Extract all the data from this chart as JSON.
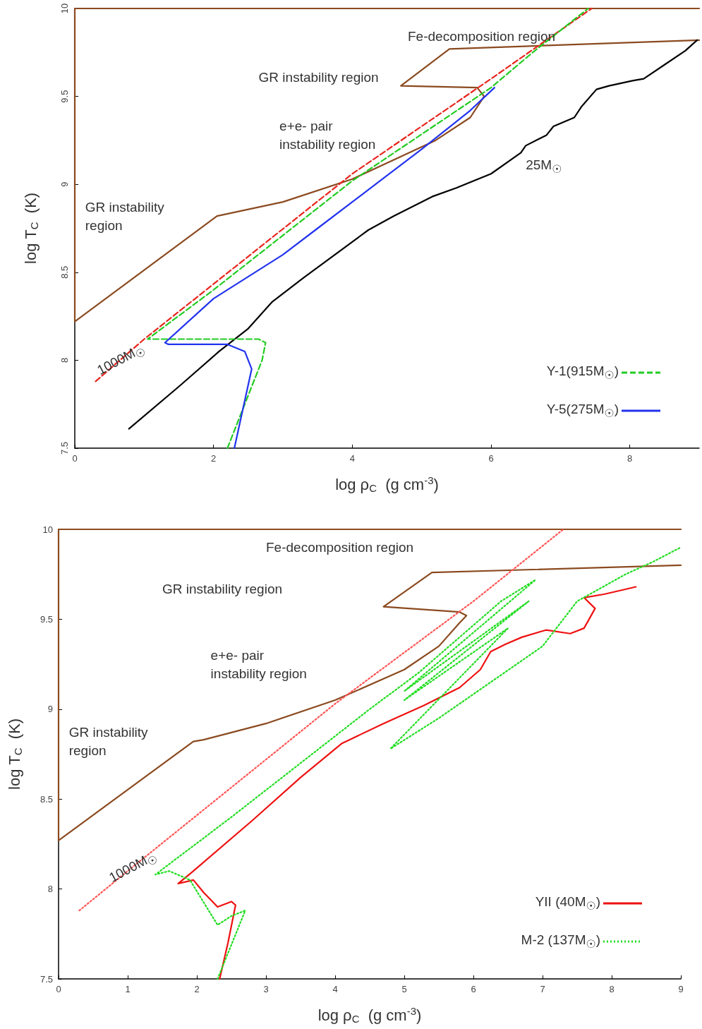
{
  "chart_data": [
    {
      "type": "line",
      "xlabel": "log ρ$_{C}$  (g cm$^{-3}$)",
      "ylabel": "log T$_{C}$  (K)",
      "xlim": [
        0,
        9
      ],
      "xticks": [
        0,
        2,
        4,
        6,
        8
      ],
      "ylim": [
        7.5,
        10
      ],
      "yticks": [
        7.5,
        8,
        8.5,
        9,
        9.5,
        10
      ],
      "grid": false,
      "legend": "bottom right",
      "marker": "none",
      "series": [
        {
          "color": "#8b4a1f",
          "line_style": "solid",
          "x": [
            9,
            5.4,
            4.7,
            5.8,
            5.9,
            5.7,
            5.2,
            4,
            3,
            2.05,
            0,
            0,
            9
          ],
          "values": [
            9.82,
            9.77,
            9.56,
            9.55,
            9.5,
            9.38,
            9.25,
            9.03,
            8.9,
            8.82,
            8.22,
            10,
            10
          ]
        },
        {
          "color": "#e8251e",
          "line_style": "dashed",
          "x": [
            0.3,
            1,
            4,
            6,
            7.45
          ],
          "values": [
            7.88,
            8.12,
            9.06,
            9.6,
            10
          ]
        },
        {
          "color": "#000000",
          "line_style": "solid",
          "x": [
            0.78,
            1.5,
            2.08,
            2.5,
            2.84,
            3.3,
            4.23,
            4.6,
            5.15,
            5.5,
            6,
            6.43,
            6.5,
            6.8,
            6.9,
            7.2,
            7.3,
            7.52,
            7.7,
            8.05,
            8.2,
            8.5,
            8.8,
            8.97
          ],
          "values": [
            7.61,
            7.85,
            8.05,
            8.18,
            8.33,
            8.47,
            8.74,
            8.82,
            8.93,
            8.98,
            9.06,
            9.18,
            9.22,
            9.28,
            9.33,
            9.38,
            9.44,
            9.54,
            9.56,
            9.59,
            9.6,
            9.68,
            9.76,
            9.82
          ]
        },
        {
          "name": "Y-1(915M$_{☉}$)",
          "color": "#22cc22",
          "line_style": "dashed",
          "x": [
            2.2,
            2.5,
            2.7,
            2.75,
            2.65,
            1.05,
            2,
            4,
            6,
            6.6,
            7.4
          ],
          "values": [
            7.5,
            7.8,
            8.0,
            8.1,
            8.12,
            8.12,
            8.4,
            9.02,
            9.55,
            9.75,
            10
          ]
        },
        {
          "name": "Y-5(275M$_{☉}$)",
          "color": "#2233ee",
          "line_style": "solid",
          "x": [
            2.3,
            2.55,
            2.45,
            2.2,
            1.35,
            1.3,
            2,
            3,
            3.5,
            4,
            5,
            5.7,
            6.05
          ],
          "values": [
            7.5,
            7.95,
            8.05,
            8.09,
            8.09,
            8.1,
            8.35,
            8.6,
            8.75,
            8.9,
            9.2,
            9.42,
            9.55
          ]
        }
      ],
      "annotations": [
        "Fe-decomposition region",
        "GR instability region",
        "e+e- pair\ninstability region",
        "GR instability\nregion",
        "1000M$_{☉}$",
        "25M$_{☉}$"
      ]
    },
    {
      "type": "line",
      "xlabel": "log ρ$_{C}$  (g cm$^{-3}$)",
      "ylabel": "log T$_{C}$  (K)",
      "xlim": [
        0,
        9
      ],
      "xticks": [
        0,
        1,
        2,
        3,
        4,
        5,
        6,
        7,
        8,
        9
      ],
      "ylim": [
        7.5,
        10
      ],
      "yticks": [
        7.5,
        8,
        8.5,
        9,
        9.5,
        10
      ],
      "grid": false,
      "legend": "bottom right",
      "marker": "none",
      "series": [
        {
          "color": "#8b4a1f",
          "line_style": "solid",
          "x": [
            9,
            5.4,
            4.7,
            5.8,
            5.9,
            5.8,
            5.5,
            5,
            4,
            3,
            2.1,
            1.95,
            0,
            0,
            9
          ],
          "values": [
            9.8,
            9.76,
            9.57,
            9.54,
            9.52,
            9.48,
            9.35,
            9.22,
            9.05,
            8.92,
            8.83,
            8.82,
            8.27,
            10,
            10
          ]
        },
        {
          "color": "#ff5555",
          "line_style": "dotted",
          "x": [
            0.3,
            1,
            4,
            6,
            7.3
          ],
          "values": [
            7.88,
            8.1,
            9.03,
            9.6,
            10
          ]
        },
        {
          "name": "YII (40M$_{☉}$)",
          "color": "#ee1111",
          "line_style": "solid",
          "x": [
            2.33,
            2.45,
            2.56,
            2.5,
            2.3,
            2.1,
            1.95,
            1.73,
            1.92,
            2.8,
            3.5,
            4.1,
            4.7,
            5.28,
            5.8,
            6.1,
            6.25,
            6.46,
            6.7,
            7.05,
            7.4,
            7.6,
            7.76,
            7.6,
            7.9,
            8.35
          ],
          "values": [
            7.5,
            7.7,
            7.91,
            7.93,
            7.9,
            7.98,
            8.05,
            8.03,
            8.09,
            8.38,
            8.62,
            8.81,
            8.92,
            9.02,
            9.12,
            9.22,
            9.32,
            9.36,
            9.4,
            9.44,
            9.42,
            9.45,
            9.56,
            9.62,
            9.64,
            9.68
          ]
        },
        {
          "name": "M-2 (137M$_{☉}$)",
          "color": "#22dd22",
          "line_style": "dotted",
          "x": [
            2.3,
            2.7,
            2.5,
            2.3,
            1.9,
            1.6,
            1.4,
            2.5,
            3.5,
            4.5,
            5.2,
            5.8,
            6.4,
            6.9,
            5,
            6.8,
            5,
            6.5,
            4.8,
            5.5,
            7,
            7.2,
            7.5,
            8.2,
            8.6,
            9
          ],
          "values": [
            7.5,
            7.88,
            7.85,
            7.8,
            8.05,
            8.1,
            8.08,
            8.4,
            8.7,
            9.0,
            9.2,
            9.4,
            9.6,
            9.72,
            9.1,
            9.6,
            9.05,
            9.45,
            8.78,
            8.95,
            9.35,
            9.45,
            9.6,
            9.75,
            9.82,
            9.9
          ]
        }
      ],
      "annotations": [
        "Fe-decomposition region",
        "GR instability region",
        "e+e- pair\ninstability region",
        "GR instability\nregion",
        "1000M$_{☉}$"
      ]
    }
  ]
}
